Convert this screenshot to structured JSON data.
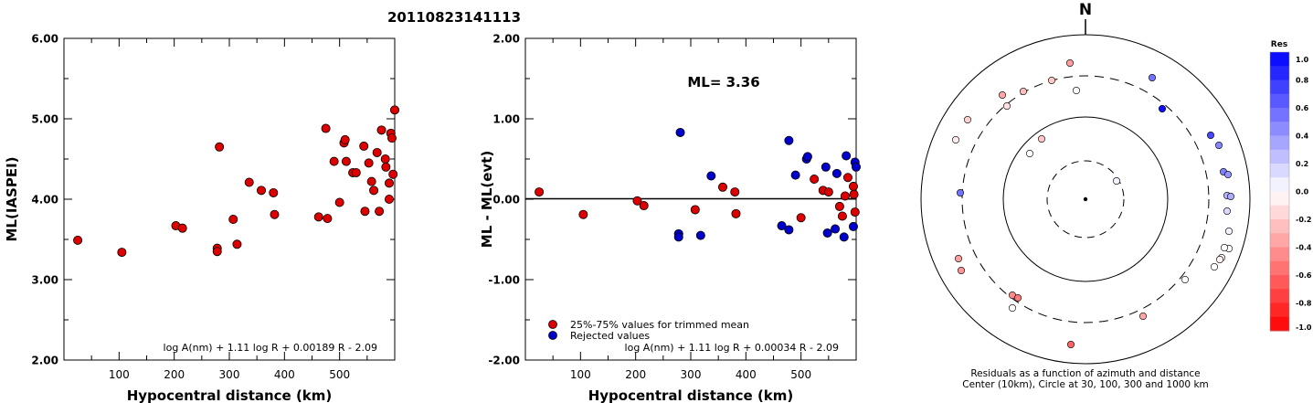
{
  "event_title": "20110823141113",
  "chart_data": [
    {
      "type": "scatter",
      "title": "",
      "xlabel": "Hypocentral distance (km)",
      "ylabel": "ML(IASPEI)",
      "xlim": [
        0,
        600
      ],
      "ylim": [
        2.0,
        6.0
      ],
      "x_ticks": [
        "100",
        "200",
        "300",
        "400",
        "500"
      ],
      "y_ticks": [
        "2.00",
        "3.00",
        "4.00",
        "5.00",
        "6.00"
      ],
      "formula": "log A(nm) + 1.11 log R + 0.00189 R - 2.09",
      "series": [
        {
          "color": "#dd0000",
          "points": [
            [
              25,
              3.49
            ],
            [
              105,
              3.34
            ],
            [
              203,
              3.67
            ],
            [
              215,
              3.64
            ],
            [
              278,
              3.39
            ],
            [
              278,
              3.35
            ],
            [
              282,
              4.65
            ],
            [
              307,
              3.75
            ],
            [
              314,
              3.44
            ],
            [
              336,
              4.21
            ],
            [
              358,
              4.11
            ],
            [
              380,
              4.08
            ],
            [
              382,
              3.81
            ],
            [
              462,
              3.78
            ],
            [
              475,
              4.88
            ],
            [
              478,
              3.76
            ],
            [
              490,
              4.47
            ],
            [
              500,
              3.96
            ],
            [
              508,
              4.7
            ],
            [
              510,
              4.74
            ],
            [
              512,
              4.47
            ],
            [
              524,
              4.33
            ],
            [
              530,
              4.33
            ],
            [
              544,
              4.66
            ],
            [
              546,
              3.85
            ],
            [
              553,
              4.45
            ],
            [
              558,
              4.22
            ],
            [
              562,
              4.11
            ],
            [
              568,
              4.58
            ],
            [
              572,
              3.85
            ],
            [
              576,
              4.86
            ],
            [
              583,
              4.5
            ],
            [
              584,
              4.4
            ],
            [
              590,
              4.2
            ],
            [
              590,
              4.0
            ],
            [
              593,
              4.82
            ],
            [
              595,
              4.76
            ],
            [
              597,
              4.31
            ],
            [
              600,
              5.11
            ]
          ]
        }
      ]
    },
    {
      "type": "scatter",
      "title": "",
      "xlabel": "Hypocentral distance (km)",
      "ylabel": "ML - ML(evt)",
      "xlim": [
        0,
        600
      ],
      "ylim": [
        -2.0,
        2.0
      ],
      "x_ticks": [
        "100",
        "200",
        "300",
        "400",
        "500"
      ],
      "y_ticks": [
        "-2.00",
        "-1.00",
        "0.00",
        "1.00",
        "2.00"
      ],
      "annotation": "ML= 3.36",
      "legend": [
        "25%-75% values for trimmed mean",
        "Rejected values"
      ],
      "formula": "log A(nm) + 1.11 log R + 0.00034 R - 2.09",
      "series": [
        {
          "name": "25%-75% values for trimmed mean",
          "color": "#dd0000",
          "points": [
            [
              25,
              0.09
            ],
            [
              105,
              -0.19
            ],
            [
              203,
              -0.02
            ],
            [
              215,
              -0.08
            ],
            [
              308,
              -0.13
            ],
            [
              358,
              0.15
            ],
            [
              380,
              0.09
            ],
            [
              382,
              -0.18
            ],
            [
              500,
              -0.23
            ],
            [
              524,
              0.25
            ],
            [
              540,
              0.11
            ],
            [
              550,
              0.09
            ],
            [
              570,
              -0.09
            ],
            [
              575,
              -0.21
            ],
            [
              580,
              0.04
            ],
            [
              585,
              0.27
            ],
            [
              595,
              0.16
            ],
            [
              596,
              0.06
            ],
            [
              598,
              -0.16
            ]
          ]
        },
        {
          "name": "Rejected values",
          "color": "#0000cc",
          "points": [
            [
              278,
              -0.43
            ],
            [
              278,
              -0.47
            ],
            [
              281,
              0.83
            ],
            [
              318,
              -0.45
            ],
            [
              337,
              0.29
            ],
            [
              465,
              -0.33
            ],
            [
              478,
              0.73
            ],
            [
              478,
              -0.38
            ],
            [
              490,
              0.3
            ],
            [
              510,
              0.5
            ],
            [
              512,
              0.53
            ],
            [
              545,
              0.4
            ],
            [
              548,
              -0.42
            ],
            [
              562,
              -0.37
            ],
            [
              565,
              0.32
            ],
            [
              578,
              -0.47
            ],
            [
              582,
              0.54
            ],
            [
              595,
              -0.34
            ],
            [
              598,
              0.46
            ],
            [
              600,
              0.4
            ]
          ]
        }
      ]
    },
    {
      "type": "polar",
      "title": "N",
      "caption_line1": "Residuals as a function of azimuth and distance",
      "caption_line2": "Center (10km), Circle at 30, 100, 300 and 1000 km",
      "colorbar_label": "Res",
      "colorbar_ticks": [
        "1.0",
        "0.8",
        "0.6",
        "0.4",
        "0.2",
        "0.0",
        "-0.2",
        "-0.4",
        "-0.6",
        "-0.8",
        "-1.0"
      ],
      "stations": [
        {
          "x": -17,
          "y": -149,
          "res": -0.38
        },
        {
          "x": -37,
          "y": -130,
          "res": -0.22
        },
        {
          "x": -91,
          "y": -114,
          "res": -0.34
        },
        {
          "x": -68,
          "y": -118,
          "res": -0.26
        },
        {
          "x": -86,
          "y": -102,
          "res": -0.12
        },
        {
          "x": -129,
          "y": -87,
          "res": -0.18
        },
        {
          "x": -142,
          "y": -65,
          "res": -0.08
        },
        {
          "x": -48,
          "y": -66,
          "res": -0.22
        },
        {
          "x": -61,
          "y": -50,
          "res": 0.0
        },
        {
          "x": -10,
          "y": -119,
          "res": 0.02
        },
        {
          "x": 73,
          "y": -133,
          "res": 0.55
        },
        {
          "x": 84,
          "y": -99,
          "res": 0.95
        },
        {
          "x": 34,
          "y": -20,
          "res": 0.05
        },
        {
          "x": -137,
          "y": -7,
          "res": 0.55
        },
        {
          "x": 137,
          "y": -70,
          "res": 0.72
        },
        {
          "x": 146,
          "y": -59,
          "res": 0.48
        },
        {
          "x": 151,
          "y": -30,
          "res": 0.5
        },
        {
          "x": 156,
          "y": -27,
          "res": 0.42
        },
        {
          "x": 155,
          "y": -4,
          "res": 0.3
        },
        {
          "x": 159,
          "y": -3,
          "res": 0.32
        },
        {
          "x": 155,
          "y": 13,
          "res": 0.15
        },
        {
          "x": 157,
          "y": 35,
          "res": 0.05
        },
        {
          "x": 157,
          "y": 54,
          "res": 0.0
        },
        {
          "x": 152,
          "y": 53,
          "res": 0.0
        },
        {
          "x": 149,
          "y": 64,
          "res": -0.02
        },
        {
          "x": 147,
          "y": 66,
          "res": -0.05
        },
        {
          "x": 141,
          "y": 74,
          "res": 0.0
        },
        {
          "x": 109,
          "y": 88,
          "res": 0.02
        },
        {
          "x": -139,
          "y": 65,
          "res": -0.38
        },
        {
          "x": -136,
          "y": 78,
          "res": -0.42
        },
        {
          "x": -80,
          "y": 105,
          "res": -0.45
        },
        {
          "x": -74,
          "y": 108,
          "res": -0.52
        },
        {
          "x": -80,
          "y": 119,
          "res": 0.0
        },
        {
          "x": 63,
          "y": 128,
          "res": -0.35
        },
        {
          "x": -16,
          "y": 159,
          "res": -0.6
        }
      ]
    }
  ]
}
